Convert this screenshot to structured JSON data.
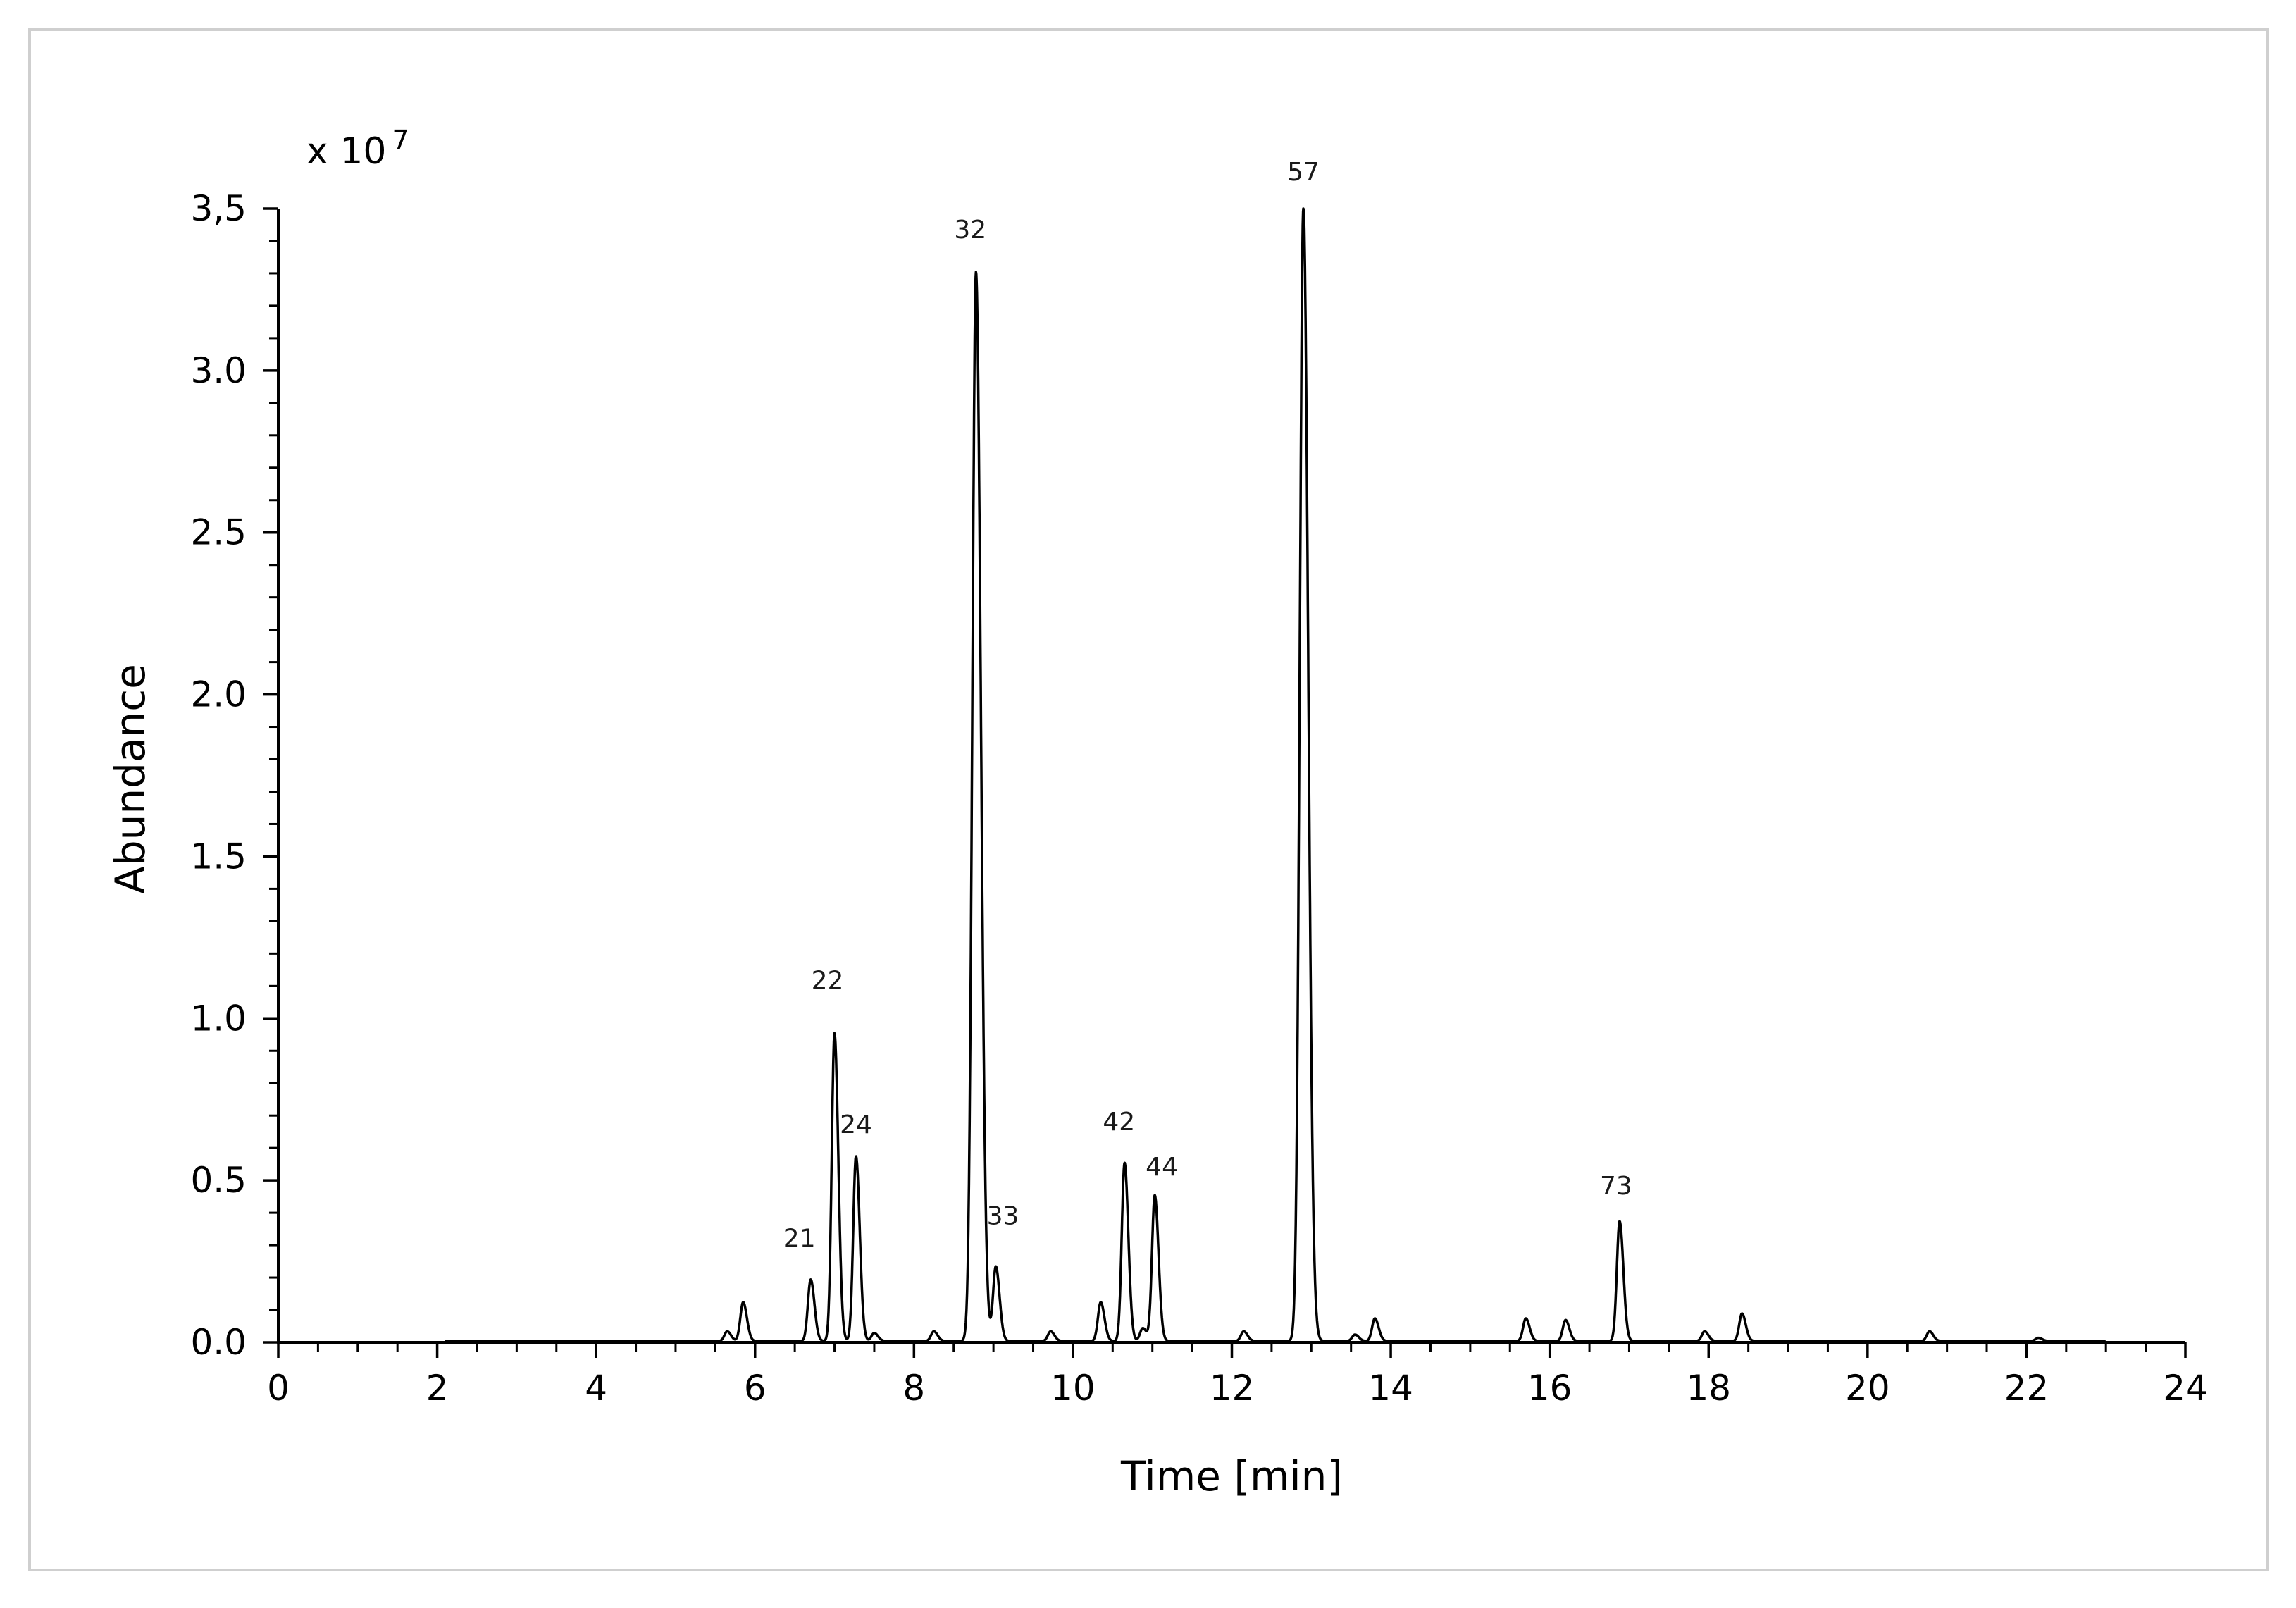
{
  "chart_data": {
    "type": "line",
    "xlabel": "Time [min]",
    "ylabel": "Abundance",
    "y_multiplier": {
      "base": "x 10",
      "exponent": "7"
    },
    "xlim": [
      0,
      24
    ],
    "ylim": [
      0,
      3.5
    ],
    "x_ticks": [
      "0",
      "2",
      "4",
      "6",
      "8",
      "10",
      "12",
      "14",
      "16",
      "18",
      "20",
      "22",
      "24"
    ],
    "y_ticks": [
      "0.0",
      "0.5",
      "1.0",
      "1.5",
      "2.0",
      "2.5",
      "3.0",
      "3,5"
    ],
    "grid": false,
    "series_color": "#000000",
    "peaks": [
      {
        "t": 5.65,
        "h": 0.03
      },
      {
        "t": 5.85,
        "h": 0.12
      },
      {
        "t": 6.7,
        "h": 0.19,
        "label": "21"
      },
      {
        "t": 7.0,
        "h": 0.95,
        "label": "22"
      },
      {
        "t": 7.27,
        "h": 0.57,
        "label": "24"
      },
      {
        "t": 7.5,
        "h": 0.025
      },
      {
        "t": 8.25,
        "h": 0.03
      },
      {
        "t": 8.78,
        "h": 3.3,
        "label": "32",
        "w": 0.045
      },
      {
        "t": 9.03,
        "h": 0.23,
        "label": "33"
      },
      {
        "t": 9.72,
        "h": 0.03
      },
      {
        "t": 10.35,
        "h": 0.12
      },
      {
        "t": 10.65,
        "h": 0.55,
        "label": "42"
      },
      {
        "t": 10.88,
        "h": 0.04
      },
      {
        "t": 11.03,
        "h": 0.45,
        "label": "44"
      },
      {
        "t": 12.15,
        "h": 0.03
      },
      {
        "t": 12.9,
        "h": 3.5,
        "label": "57",
        "w": 0.045
      },
      {
        "t": 13.55,
        "h": 0.02
      },
      {
        "t": 13.8,
        "h": 0.07
      },
      {
        "t": 15.7,
        "h": 0.07
      },
      {
        "t": 16.2,
        "h": 0.065
      },
      {
        "t": 16.88,
        "h": 0.37,
        "label": "73"
      },
      {
        "t": 17.95,
        "h": 0.03
      },
      {
        "t": 18.42,
        "h": 0.085
      },
      {
        "t": 20.78,
        "h": 0.03
      },
      {
        "t": 22.15,
        "h": 0.01
      }
    ]
  }
}
